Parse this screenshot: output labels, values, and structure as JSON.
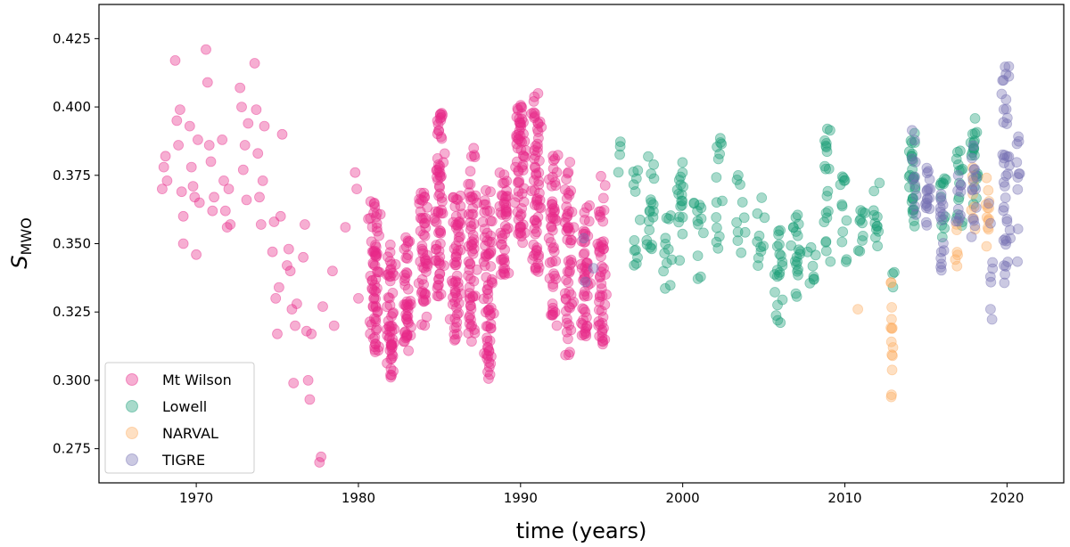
{
  "chart_data": {
    "type": "scatter",
    "xlabel": "time (years)",
    "ylabel_main": "S",
    "ylabel_sub": "MWO",
    "xlim": [
      1964,
      2023.5
    ],
    "ylim": [
      0.2625,
      0.4375
    ],
    "xticks": [
      "1970",
      "1980",
      "1990",
      "2000",
      "2010",
      "2020"
    ],
    "yticks": [
      "0.275",
      "0.300",
      "0.325",
      "0.350",
      "0.375",
      "0.400",
      "0.425"
    ],
    "grid": false,
    "legend_position": "lower-left",
    "series": [
      {
        "name": "Mt Wilson",
        "color": "#e7298a",
        "points": [
          [
            1967.9,
            0.37
          ],
          [
            1968.0,
            0.378
          ],
          [
            1968.1,
            0.382
          ],
          [
            1968.2,
            0.373
          ],
          [
            1968.7,
            0.417
          ],
          [
            1968.8,
            0.395
          ],
          [
            1968.9,
            0.386
          ],
          [
            1969.0,
            0.399
          ],
          [
            1969.1,
            0.369
          ],
          [
            1969.2,
            0.35
          ],
          [
            1969.2,
            0.36
          ],
          [
            1969.6,
            0.393
          ],
          [
            1969.7,
            0.378
          ],
          [
            1969.8,
            0.371
          ],
          [
            1969.9,
            0.367
          ],
          [
            1970.0,
            0.346
          ],
          [
            1970.1,
            0.388
          ],
          [
            1970.2,
            0.365
          ],
          [
            1970.6,
            0.421
          ],
          [
            1970.7,
            0.409
          ],
          [
            1970.8,
            0.386
          ],
          [
            1970.9,
            0.38
          ],
          [
            1971.0,
            0.362
          ],
          [
            1971.1,
            0.367
          ],
          [
            1971.6,
            0.388
          ],
          [
            1971.7,
            0.373
          ],
          [
            1971.8,
            0.362
          ],
          [
            1971.9,
            0.356
          ],
          [
            1972.0,
            0.37
          ],
          [
            1972.1,
            0.357
          ],
          [
            1972.7,
            0.407
          ],
          [
            1972.8,
            0.4
          ],
          [
            1972.9,
            0.377
          ],
          [
            1973.0,
            0.386
          ],
          [
            1973.1,
            0.366
          ],
          [
            1973.2,
            0.394
          ],
          [
            1973.6,
            0.416
          ],
          [
            1973.7,
            0.399
          ],
          [
            1973.8,
            0.383
          ],
          [
            1973.9,
            0.367
          ],
          [
            1974.0,
            0.357
          ],
          [
            1974.1,
            0.373
          ],
          [
            1974.2,
            0.393
          ],
          [
            1974.7,
            0.347
          ],
          [
            1974.8,
            0.358
          ],
          [
            1974.9,
            0.33
          ],
          [
            1975.0,
            0.317
          ],
          [
            1975.1,
            0.334
          ],
          [
            1975.2,
            0.36
          ],
          [
            1975.3,
            0.39
          ],
          [
            1975.6,
            0.342
          ],
          [
            1975.7,
            0.348
          ],
          [
            1975.8,
            0.34
          ],
          [
            1975.9,
            0.326
          ],
          [
            1976.0,
            0.299
          ],
          [
            1976.1,
            0.32
          ],
          [
            1976.2,
            0.328
          ],
          [
            1976.6,
            0.345
          ],
          [
            1976.7,
            0.357
          ],
          [
            1976.8,
            0.318
          ],
          [
            1976.9,
            0.3
          ],
          [
            1977.0,
            0.293
          ],
          [
            1977.1,
            0.317
          ],
          [
            1977.6,
            0.27
          ],
          [
            1977.7,
            0.272
          ],
          [
            1977.8,
            0.327
          ],
          [
            1978.4,
            0.34
          ],
          [
            1978.5,
            0.32
          ],
          [
            1979.2,
            0.356
          ],
          [
            1979.8,
            0.376
          ],
          [
            1979.9,
            0.37
          ],
          [
            1980.0,
            0.33
          ]
        ],
        "clusters": [
          {
            "center": 1981.0,
            "spread": 0.45,
            "ymin": 0.31,
            "ymax": 0.366,
            "n": 70
          },
          {
            "center": 1982.0,
            "spread": 0.4,
            "ymin": 0.301,
            "ymax": 0.35,
            "n": 55
          },
          {
            "center": 1983.0,
            "spread": 0.4,
            "ymin": 0.31,
            "ymax": 0.353,
            "n": 45
          },
          {
            "center": 1984.0,
            "spread": 0.4,
            "ymin": 0.32,
            "ymax": 0.37,
            "n": 50
          },
          {
            "center": 1985.0,
            "spread": 0.45,
            "ymin": 0.33,
            "ymax": 0.398,
            "n": 70
          },
          {
            "center": 1986.0,
            "spread": 0.45,
            "ymin": 0.314,
            "ymax": 0.37,
            "n": 60
          },
          {
            "center": 1987.0,
            "spread": 0.45,
            "ymin": 0.313,
            "ymax": 0.389,
            "n": 60
          },
          {
            "center": 1988.0,
            "spread": 0.45,
            "ymin": 0.299,
            "ymax": 0.37,
            "n": 70
          },
          {
            "center": 1989.0,
            "spread": 0.4,
            "ymin": 0.338,
            "ymax": 0.378,
            "n": 45
          },
          {
            "center": 1990.0,
            "spread": 0.45,
            "ymin": 0.35,
            "ymax": 0.403,
            "n": 65
          },
          {
            "center": 1991.0,
            "spread": 0.45,
            "ymin": 0.339,
            "ymax": 0.405,
            "n": 65
          },
          {
            "center": 1992.0,
            "spread": 0.4,
            "ymin": 0.32,
            "ymax": 0.383,
            "n": 50
          },
          {
            "center": 1993.0,
            "spread": 0.4,
            "ymin": 0.309,
            "ymax": 0.38,
            "n": 55
          },
          {
            "center": 1994.0,
            "spread": 0.4,
            "ymin": 0.316,
            "ymax": 0.368,
            "n": 50
          },
          {
            "center": 1995.0,
            "spread": 0.35,
            "ymin": 0.313,
            "ymax": 0.375,
            "n": 50
          }
        ]
      },
      {
        "name": "Lowell",
        "color": "#1b9e77",
        "clusters": [
          {
            "center": 1996.1,
            "spread": 0.15,
            "ymin": 0.372,
            "ymax": 0.391,
            "n": 4
          },
          {
            "center": 1997.1,
            "spread": 0.4,
            "ymin": 0.341,
            "ymax": 0.379,
            "n": 12
          },
          {
            "center": 1998.0,
            "spread": 0.4,
            "ymin": 0.341,
            "ymax": 0.383,
            "n": 18
          },
          {
            "center": 1999.0,
            "spread": 0.4,
            "ymin": 0.333,
            "ymax": 0.362,
            "n": 12
          },
          {
            "center": 1999.9,
            "spread": 0.3,
            "ymin": 0.341,
            "ymax": 0.38,
            "n": 18
          },
          {
            "center": 2001.0,
            "spread": 0.4,
            "ymin": 0.337,
            "ymax": 0.366,
            "n": 12
          },
          {
            "center": 2002.2,
            "spread": 0.5,
            "ymin": 0.345,
            "ymax": 0.391,
            "n": 14
          },
          {
            "center": 2003.5,
            "spread": 0.6,
            "ymin": 0.344,
            "ymax": 0.378,
            "n": 10
          },
          {
            "center": 2004.8,
            "spread": 0.5,
            "ymin": 0.339,
            "ymax": 0.367,
            "n": 10
          },
          {
            "center": 2006.0,
            "spread": 0.4,
            "ymin": 0.321,
            "ymax": 0.357,
            "n": 20
          },
          {
            "center": 2007.0,
            "spread": 0.4,
            "ymin": 0.328,
            "ymax": 0.362,
            "n": 20
          },
          {
            "center": 2008.0,
            "spread": 0.35,
            "ymin": 0.334,
            "ymax": 0.352,
            "n": 8
          },
          {
            "center": 2008.9,
            "spread": 0.4,
            "ymin": 0.343,
            "ymax": 0.392,
            "n": 20
          },
          {
            "center": 2010.0,
            "spread": 0.45,
            "ymin": 0.34,
            "ymax": 0.376,
            "n": 12
          },
          {
            "center": 2011.0,
            "spread": 0.4,
            "ymin": 0.343,
            "ymax": 0.365,
            "n": 10
          },
          {
            "center": 2012.0,
            "spread": 0.35,
            "ymin": 0.346,
            "ymax": 0.373,
            "n": 12
          },
          {
            "center": 2013.0,
            "spread": 0.25,
            "ymin": 0.334,
            "ymax": 0.341,
            "n": 3
          },
          {
            "center": 2014.2,
            "spread": 0.35,
            "ymin": 0.354,
            "ymax": 0.391,
            "n": 30
          },
          {
            "center": 2016.0,
            "spread": 0.35,
            "ymin": 0.352,
            "ymax": 0.376,
            "n": 12
          },
          {
            "center": 2017.0,
            "spread": 0.35,
            "ymin": 0.356,
            "ymax": 0.385,
            "n": 14
          },
          {
            "center": 2018.0,
            "spread": 0.35,
            "ymin": 0.36,
            "ymax": 0.397,
            "n": 20
          }
        ]
      },
      {
        "name": "NARVAL",
        "color": "#fdae61",
        "points": [
          [
            2010.8,
            0.326
          ]
        ],
        "clusters": [
          {
            "center": 2012.9,
            "spread": 0.1,
            "ymin": 0.289,
            "ymax": 0.338,
            "n": 14
          },
          {
            "center": 2016.9,
            "spread": 0.2,
            "ymin": 0.341,
            "ymax": 0.36,
            "n": 6
          },
          {
            "center": 2017.9,
            "spread": 0.25,
            "ymin": 0.35,
            "ymax": 0.38,
            "n": 8
          },
          {
            "center": 2018.8,
            "spread": 0.25,
            "ymin": 0.344,
            "ymax": 0.378,
            "n": 12
          }
        ]
      },
      {
        "name": "TIGRE",
        "color": "#7570b3",
        "points": [
          [
            1993.9,
            0.352
          ],
          [
            1994.0,
            0.336
          ],
          [
            1994.5,
            0.341
          ]
        ],
        "clusters": [
          {
            "center": 2014.3,
            "spread": 0.3,
            "ymin": 0.36,
            "ymax": 0.392,
            "n": 10
          },
          {
            "center": 2015.1,
            "spread": 0.3,
            "ymin": 0.346,
            "ymax": 0.379,
            "n": 18
          },
          {
            "center": 2016.0,
            "spread": 0.3,
            "ymin": 0.339,
            "ymax": 0.372,
            "n": 16
          },
          {
            "center": 2017.0,
            "spread": 0.3,
            "ymin": 0.356,
            "ymax": 0.375,
            "n": 10
          },
          {
            "center": 2018.0,
            "spread": 0.3,
            "ymin": 0.352,
            "ymax": 0.387,
            "n": 14
          },
          {
            "center": 2019.0,
            "spread": 0.25,
            "ymin": 0.317,
            "ymax": 0.371,
            "n": 8
          },
          {
            "center": 2019.9,
            "spread": 0.35,
            "ymin": 0.331,
            "ymax": 0.417,
            "n": 40
          },
          {
            "center": 2020.7,
            "spread": 0.2,
            "ymin": 0.337,
            "ymax": 0.392,
            "n": 10
          }
        ]
      }
    ]
  }
}
